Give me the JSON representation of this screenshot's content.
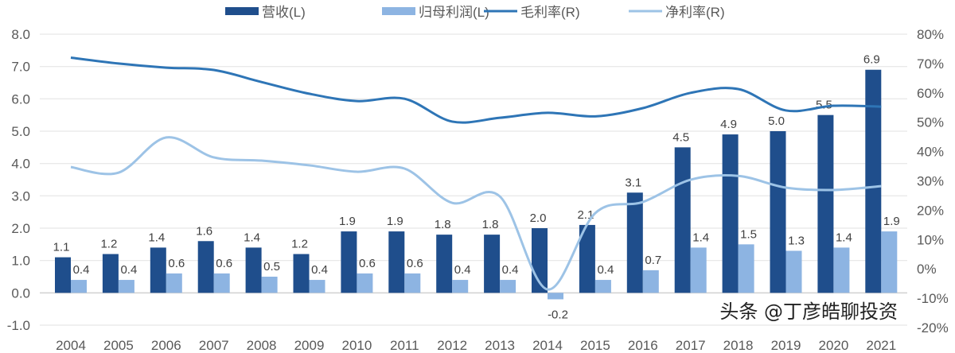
{
  "chart_data": {
    "type": "bar+line",
    "categories": [
      "2004",
      "2005",
      "2006",
      "2007",
      "2008",
      "2009",
      "2010",
      "2011",
      "2012",
      "2013",
      "2014",
      "2015",
      "2016",
      "2017",
      "2018",
      "2019",
      "2020",
      "2021"
    ],
    "series": [
      {
        "name": "营收(L)",
        "type": "bar",
        "axis": "left",
        "color": "#1F4E8C",
        "values": [
          1.1,
          1.2,
          1.4,
          1.6,
          1.4,
          1.2,
          1.9,
          1.9,
          1.8,
          1.8,
          2.0,
          2.1,
          3.1,
          4.5,
          4.9,
          5.0,
          5.5,
          6.9
        ]
      },
      {
        "name": "归母利润(L)",
        "type": "bar",
        "axis": "left",
        "color": "#8DB4E2",
        "values": [
          0.4,
          0.4,
          0.6,
          0.6,
          0.5,
          0.4,
          0.6,
          0.6,
          0.4,
          0.4,
          -0.2,
          0.4,
          0.7,
          1.4,
          1.5,
          1.3,
          1.4,
          1.9
        ]
      },
      {
        "name": "毛利率(R)",
        "type": "line",
        "axis": "right",
        "color": "#2E75B6",
        "values": [
          72,
          70,
          68.6,
          67.8,
          63.7,
          59.7,
          57.2,
          58,
          50.2,
          51.5,
          53.2,
          52,
          54.8,
          60,
          61.3,
          54,
          55.6,
          55.3
        ]
      },
      {
        "name": "净利率(R)",
        "type": "line",
        "axis": "right",
        "color": "#9DC3E6",
        "values": [
          34.7,
          32.8,
          44.8,
          38,
          36.9,
          35.3,
          33.1,
          34.2,
          22.5,
          24.7,
          -7,
          19,
          22.8,
          30.4,
          31.7,
          27.7,
          26.9,
          28.2
        ]
      }
    ],
    "left_axis": {
      "ylim": [
        -1,
        8
      ],
      "ticks": [
        "-1.0",
        "0.0",
        "1.0",
        "2.0",
        "3.0",
        "4.0",
        "5.0",
        "6.0",
        "7.0",
        "8.0"
      ]
    },
    "right_axis": {
      "ylim": [
        -20,
        80
      ],
      "ticks": [
        "-20%",
        "-10%",
        "0%",
        "10%",
        "20%",
        "30%",
        "40%",
        "50%",
        "60%",
        "70%",
        "80%"
      ]
    },
    "grid": true,
    "legend_position": "top"
  },
  "watermark": "头条 @丁彦皓聊投资"
}
